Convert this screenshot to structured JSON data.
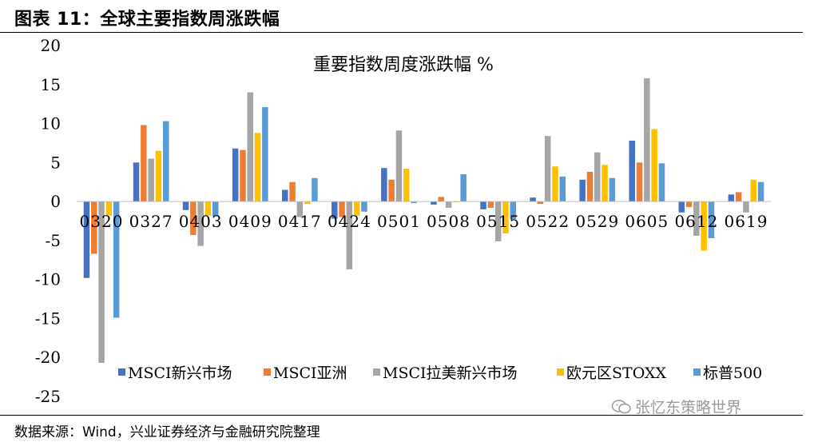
{
  "figure_title": "图表 11：全球主要指数周涨跌幅",
  "source_note": "数据来源：Wind，兴业证券经济与金融研究院整理",
  "watermark": "张忆东策略世界",
  "chart_data": {
    "type": "bar",
    "title": "重要指数周度涨跌幅 %",
    "xlabel": "",
    "ylabel": "",
    "ylim": [
      -25,
      20
    ],
    "yticks": [
      20,
      15,
      10,
      5,
      0,
      -5,
      -10,
      -15,
      -20,
      -25
    ],
    "grid": false,
    "legend_position": "bottom",
    "categories": [
      "0320",
      "0327",
      "0403",
      "0409",
      "0417",
      "0424",
      "0501",
      "0508",
      "0515",
      "0522",
      "0529",
      "0605",
      "0612",
      "0619"
    ],
    "series": [
      {
        "name": "MSCI新兴市场",
        "color": "#4472C4",
        "values": [
          -9.8,
          5.0,
          -1.1,
          6.8,
          1.5,
          -2.2,
          4.3,
          -0.4,
          -1.0,
          0.5,
          2.8,
          7.8,
          -1.4,
          0.9
        ]
      },
      {
        "name": "MSCI亚洲",
        "color": "#ED7D31",
        "values": [
          -6.7,
          9.8,
          -4.3,
          6.6,
          2.5,
          -2.0,
          2.8,
          0.6,
          -0.8,
          -0.3,
          3.8,
          5.0,
          -0.7,
          1.2
        ]
      },
      {
        "name": "MSCI拉美新兴市场",
        "color": "#A5A5A5",
        "values": [
          -20.7,
          5.5,
          -5.7,
          14.0,
          -2.0,
          -8.7,
          9.1,
          -0.8,
          -5.1,
          8.4,
          6.3,
          15.8,
          -4.4,
          -1.4
        ]
      },
      {
        "name": "欧元区STOXX",
        "color": "#FFC000",
        "values": [
          -1.8,
          6.5,
          -1.8,
          8.8,
          -0.3,
          -1.8,
          4.2,
          -0.1,
          -4.1,
          4.5,
          4.7,
          9.3,
          -6.3,
          2.8
        ]
      },
      {
        "name": "标普500",
        "color": "#5B9BD5",
        "values": [
          -14.9,
          10.3,
          -1.9,
          12.1,
          3.0,
          -1.3,
          -0.2,
          3.5,
          -2.3,
          3.2,
          3.0,
          4.9,
          -4.7,
          2.5
        ]
      }
    ]
  }
}
